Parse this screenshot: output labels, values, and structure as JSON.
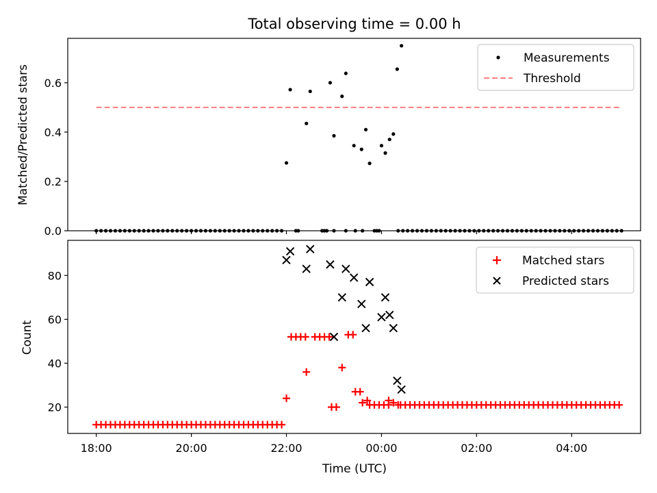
{
  "chart_data": {
    "type": "scatter",
    "title": "Total observing time = 0.00 h",
    "xlabel": "Time (UTC)",
    "x_unit": "hours since 18:00 UTC",
    "xlim": [
      -0.6,
      11.45
    ],
    "xticks": [
      {
        "value": 0,
        "label": "18:00"
      },
      {
        "value": 2,
        "label": "20:00"
      },
      {
        "value": 4,
        "label": "22:00"
      },
      {
        "value": 6,
        "label": "00:00"
      },
      {
        "value": 8,
        "label": "02:00"
      },
      {
        "value": 10,
        "label": "04:00"
      }
    ],
    "panels": [
      {
        "ylabel": "Matched/Predicted stars",
        "ylim": [
          0,
          0.78
        ],
        "yticks": [
          {
            "value": 0,
            "label": "0.0"
          },
          {
            "value": 0.2,
            "label": "0.2"
          },
          {
            "value": 0.4,
            "label": "0.4"
          },
          {
            "value": 0.6,
            "label": "0.6"
          }
        ],
        "legend_position": "top-right",
        "threshold": {
          "name": "Threshold",
          "value": 0.5,
          "x_range": [
            0,
            11.0
          ],
          "color": "#ff7f7f"
        },
        "series": [
          {
            "name": "Measurements",
            "color": "#000000",
            "marker": "dot",
            "zero_ranges": [
              [
                0,
                3.95,
                0.1
              ],
              [
                4.2,
                4.25,
                0.05
              ],
              [
                4.75,
                4.85,
                0.05
              ],
              [
                5.45,
                5.45,
                0.1
              ],
              [
                5.85,
                5.95,
                0.05
              ],
              [
                6.35,
                11.05,
                0.1
              ]
            ],
            "points": [
              {
                "x": 4.0,
                "y": 0.275
              },
              {
                "x": 4.08,
                "y": 0.572
              },
              {
                "x": 4.42,
                "y": 0.435
              },
              {
                "x": 4.5,
                "y": 0.565
              },
              {
                "x": 4.92,
                "y": 0.6
              },
              {
                "x": 5.0,
                "y": 0.385
              },
              {
                "x": 5.17,
                "y": 0.545
              },
              {
                "x": 5.25,
                "y": 0.638
              },
              {
                "x": 5.0,
                "y": 0.0
              },
              {
                "x": 5.25,
                "y": 0.0
              },
              {
                "x": 5.6,
                "y": 0.0
              },
              {
                "x": 5.42,
                "y": 0.345
              },
              {
                "x": 5.58,
                "y": 0.33
              },
              {
                "x": 5.67,
                "y": 0.41
              },
              {
                "x": 5.75,
                "y": 0.273
              },
              {
                "x": 6.0,
                "y": 0.345
              },
              {
                "x": 6.08,
                "y": 0.315
              },
              {
                "x": 6.17,
                "y": 0.37
              },
              {
                "x": 6.25,
                "y": 0.392
              },
              {
                "x": 6.33,
                "y": 0.655
              },
              {
                "x": 6.42,
                "y": 0.75
              }
            ]
          }
        ]
      },
      {
        "ylabel": "Count",
        "ylim": [
          8,
          96
        ],
        "yticks": [
          {
            "value": 20,
            "label": "20"
          },
          {
            "value": 40,
            "label": "40"
          },
          {
            "value": 60,
            "label": "60"
          },
          {
            "value": 80,
            "label": "80"
          }
        ],
        "legend_position": "top-right",
        "series": [
          {
            "name": "Matched stars",
            "color": "#ff0000",
            "marker": "plus",
            "ranges": [
              [
                0,
                3.95,
                0.1,
                12
              ],
              [
                4.1,
                4.4,
                0.1,
                52
              ],
              [
                4.6,
                4.9,
                0.1,
                52
              ],
              [
                5.3,
                5.4,
                0.1,
                53
              ],
              [
                5.45,
                5.55,
                0.1,
                27
              ],
              [
                5.85,
                6.15,
                0.1,
                21
              ],
              [
                6.4,
                11.0,
                0.1,
                21
              ]
            ],
            "points": [
              {
                "x": 4.0,
                "y": 24
              },
              {
                "x": 4.42,
                "y": 36
              },
              {
                "x": 5.17,
                "y": 38
              },
              {
                "x": 4.95,
                "y": 20
              },
              {
                "x": 5.05,
                "y": 20
              },
              {
                "x": 5.6,
                "y": 22
              },
              {
                "x": 5.7,
                "y": 23
              },
              {
                "x": 5.75,
                "y": 21
              },
              {
                "x": 6.15,
                "y": 23
              },
              {
                "x": 6.25,
                "y": 22
              },
              {
                "x": 6.35,
                "y": 21
              }
            ]
          },
          {
            "name": "Predicted stars",
            "color": "#000000",
            "marker": "x",
            "points": [
              {
                "x": 4.0,
                "y": 87
              },
              {
                "x": 4.08,
                "y": 91
              },
              {
                "x": 4.42,
                "y": 83
              },
              {
                "x": 4.5,
                "y": 92
              },
              {
                "x": 4.92,
                "y": 85
              },
              {
                "x": 5.0,
                "y": 52
              },
              {
                "x": 5.17,
                "y": 70
              },
              {
                "x": 5.25,
                "y": 83
              },
              {
                "x": 5.42,
                "y": 79
              },
              {
                "x": 5.58,
                "y": 67
              },
              {
                "x": 5.67,
                "y": 56
              },
              {
                "x": 5.75,
                "y": 77
              },
              {
                "x": 6.0,
                "y": 61
              },
              {
                "x": 6.08,
                "y": 70
              },
              {
                "x": 6.17,
                "y": 62
              },
              {
                "x": 6.25,
                "y": 56
              },
              {
                "x": 6.33,
                "y": 32
              },
              {
                "x": 6.42,
                "y": 28
              }
            ]
          }
        ]
      }
    ]
  }
}
